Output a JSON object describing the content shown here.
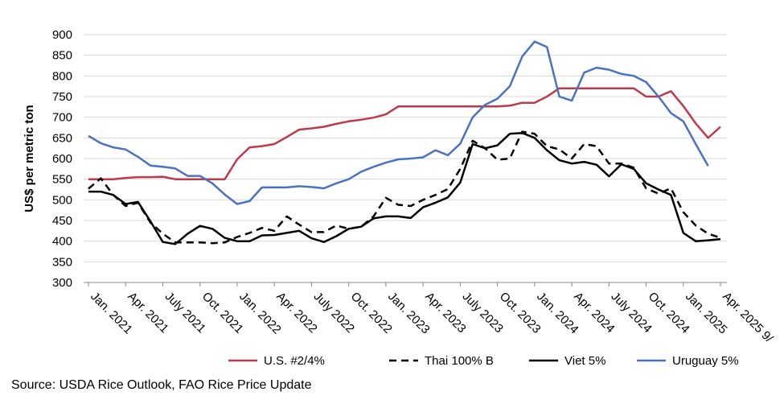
{
  "chart_data": {
    "type": "line",
    "title": "",
    "ylabel": "US$ per metric ton",
    "xlabel": "",
    "ylim": [
      300,
      900
    ],
    "yticks": [
      300,
      350,
      400,
      450,
      500,
      550,
      600,
      650,
      700,
      750,
      800,
      850,
      900
    ],
    "grid": "horizontal",
    "legend": "bottom",
    "x_labels": [
      "Jan. 2021",
      "Apr. 2021",
      "July 2021",
      "Oct. 2021",
      "Jan. 2022",
      "Apr. 2022",
      "July 2022",
      "Oct. 2022",
      "Jan. 2023",
      "Apr. 2023",
      "July 2023",
      "Oct. 2023",
      "Jan. 2024",
      "Apr. 2024",
      "July 2024",
      "Oct. 2024",
      "Jan. 2025",
      "Apr. 2025 9/"
    ],
    "months": [
      "Jan. 2021",
      "Feb. 2021",
      "Mar. 2021",
      "Apr. 2021",
      "May 2021",
      "Jun. 2021",
      "Jul. 2021",
      "Aug. 2021",
      "Sep. 2021",
      "Oct. 2021",
      "Nov. 2021",
      "Dec. 2021",
      "Jan. 2022",
      "Feb. 2022",
      "Mar. 2022",
      "Apr. 2022",
      "May 2022",
      "Jun. 2022",
      "Jul. 2022",
      "Aug. 2022",
      "Sep. 2022",
      "Oct. 2022",
      "Nov. 2022",
      "Dec. 2022",
      "Jan. 2023",
      "Feb. 2023",
      "Mar. 2023",
      "Apr. 2023",
      "May 2023",
      "Jun. 2023",
      "Jul. 2023",
      "Aug. 2023",
      "Sep. 2023",
      "Oct. 2023",
      "Nov. 2023",
      "Dec. 2023",
      "Jan. 2024",
      "Feb. 2024",
      "Mar. 2024",
      "Apr. 2024",
      "May 2024",
      "Jun. 2024",
      "Jul. 2024",
      "Aug. 2024",
      "Sep. 2024",
      "Oct. 2024",
      "Nov. 2024",
      "Dec. 2024",
      "Jan. 2025",
      "Feb. 2025",
      "Mar. 2025",
      "Apr. 2025"
    ],
    "series": [
      {
        "name": "U.S. #2/4%",
        "color": "#c0394a",
        "dash": "solid",
        "values": [
          550,
          550,
          550,
          553,
          555,
          555,
          556,
          550,
          550,
          550,
          550,
          550,
          598,
          627,
          630,
          635,
          652,
          670,
          673,
          677,
          684,
          690,
          694,
          699,
          707,
          726,
          726,
          726,
          726,
          726,
          726,
          726,
          726,
          726,
          728,
          735,
          735,
          750,
          770,
          770,
          770,
          770,
          770,
          770,
          770,
          750,
          750,
          763,
          727,
          685,
          650,
          677
        ]
      },
      {
        "name": "Thai 100% B",
        "color": "#000000",
        "dash": "dashed",
        "values": [
          527,
          552,
          512,
          485,
          493,
          445,
          418,
          397,
          397,
          397,
          395,
          397,
          410,
          420,
          432,
          425,
          460,
          440,
          422,
          422,
          438,
          430,
          435,
          460,
          505,
          488,
          485,
          500,
          512,
          526,
          575,
          643,
          625,
          597,
          600,
          665,
          660,
          630,
          622,
          600,
          635,
          630,
          588,
          588,
          578,
          528,
          515,
          528,
          470,
          438,
          418,
          408
        ]
      },
      {
        "name": "Viet 5%",
        "color": "#000000",
        "dash": "solid",
        "values": [
          520,
          520,
          512,
          490,
          495,
          448,
          398,
          393,
          418,
          437,
          430,
          408,
          400,
          400,
          414,
          415,
          420,
          425,
          407,
          398,
          412,
          430,
          435,
          455,
          460,
          460,
          456,
          482,
          493,
          506,
          542,
          635,
          625,
          632,
          660,
          662,
          650,
          620,
          596,
          588,
          592,
          585,
          557,
          586,
          575,
          540,
          525,
          512,
          420,
          400,
          402,
          405
        ]
      },
      {
        "name": "Uruguay 5%",
        "color": "#4a72c4",
        "dash": "solid",
        "values": [
          655,
          637,
          627,
          622,
          604,
          583,
          580,
          576,
          558,
          558,
          540,
          513,
          490,
          497,
          530,
          530,
          530,
          533,
          531,
          528,
          540,
          550,
          568,
          580,
          590,
          598,
          600,
          603,
          620,
          608,
          636,
          700,
          730,
          745,
          775,
          847,
          883,
          870,
          750,
          740,
          808,
          820,
          815,
          805,
          800,
          785,
          750,
          710,
          690,
          635,
          582,
          null
        ]
      }
    ]
  },
  "source_note": "Source: USDA Rice Outlook, FAO Rice Price Update"
}
